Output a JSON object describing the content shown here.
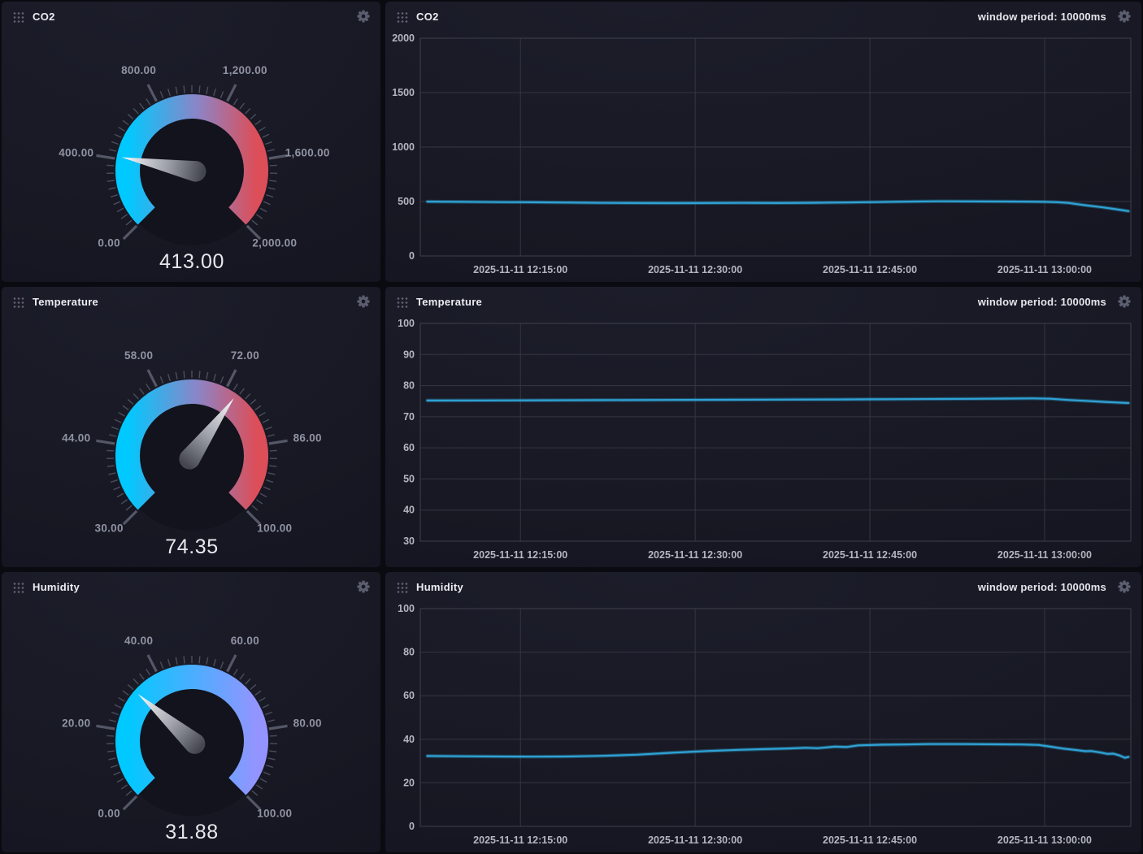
{
  "colors": {
    "page_bg": "#0a0b11",
    "panel_bg": "#181924",
    "grid": "#343642",
    "plot_border": "#3d3f4b",
    "line": "#2FA2D5",
    "tick_text": "#b3b6c1",
    "gauge_tick": "#545767",
    "gauge_label": "#8f93a3",
    "gauge_value": "#e7e8ec",
    "gauge_cyan": "#00C9FF",
    "gauge_red": "#DC4E58",
    "gauge_purple": "#9394FF",
    "gear": "#676b7c"
  },
  "panels": [
    {
      "title": "CO2"
    },
    {
      "title": "CO2",
      "note": "window period: 10000ms"
    },
    {
      "title": "Temperature"
    },
    {
      "title": "Temperature",
      "note": "window period: 10000ms"
    },
    {
      "title": "Humidity"
    },
    {
      "title": "Humidity",
      "note": "window period: 10000ms"
    }
  ],
  "gauges": [
    {
      "title": "CO2",
      "min": 0,
      "max": 2000,
      "value": 413,
      "value_label": "413.00",
      "tick_labels": [
        "0.00",
        "400.00",
        "800.00",
        "1,200.00",
        "1,600.00",
        "2,000.00"
      ],
      "gradient": [
        [
          0,
          "#00C9FF"
        ],
        [
          0.55,
          "#8d84c6"
        ],
        [
          1,
          "#DC4E58"
        ]
      ]
    },
    {
      "title": "Temperature",
      "min": 30,
      "max": 100,
      "value": 74.35,
      "value_label": "74.35",
      "tick_labels": [
        "30.00",
        "44.00",
        "58.00",
        "72.00",
        "86.00",
        "100.00"
      ],
      "gradient": [
        [
          0,
          "#00C9FF"
        ],
        [
          0.55,
          "#8d84c6"
        ],
        [
          1,
          "#DC4E58"
        ]
      ]
    },
    {
      "title": "Humidity",
      "min": 0,
      "max": 100,
      "value": 31.88,
      "value_label": "31.88",
      "tick_labels": [
        "0.00",
        "20.00",
        "40.00",
        "60.00",
        "80.00",
        "100.00"
      ],
      "gradient": [
        [
          0,
          "#00C9FF"
        ],
        [
          1,
          "#9394FF"
        ]
      ]
    }
  ],
  "chart_data": [
    {
      "type": "line",
      "title": "CO2",
      "note": "window period: 10000ms",
      "grid": true,
      "legend": "none",
      "ylim": [
        0,
        2000
      ],
      "y_ticks": [
        0,
        500,
        1000,
        1500,
        2000
      ],
      "x_domain_minutes": [
        726.4,
        787.4
      ],
      "x_ticks": [
        {
          "minute": 735,
          "label": "2025-11-11 12:15:00"
        },
        {
          "minute": 750,
          "label": "2025-11-11 12:30:00"
        },
        {
          "minute": 765,
          "label": "2025-11-11 12:45:00"
        },
        {
          "minute": 780,
          "label": "2025-11-11 13:00:00"
        }
      ],
      "series": [
        {
          "name": "CO2",
          "points": [
            [
              727,
              499
            ],
            [
              730,
              497
            ],
            [
              733,
              495
            ],
            [
              736,
              493
            ],
            [
              739,
              490
            ],
            [
              742,
              487
            ],
            [
              745,
              486
            ],
            [
              748,
              485
            ],
            [
              751,
              486
            ],
            [
              754,
              487
            ],
            [
              757,
              486
            ],
            [
              760,
              488
            ],
            [
              763,
              491
            ],
            [
              765,
              494
            ],
            [
              767,
              497
            ],
            [
              769,
              500
            ],
            [
              771,
              502
            ],
            [
              774,
              501
            ],
            [
              776,
              500
            ],
            [
              778,
              499
            ],
            [
              780,
              497
            ],
            [
              781,
              494
            ],
            [
              782,
              487
            ],
            [
              783.5,
              466
            ],
            [
              785,
              446
            ],
            [
              786.2,
              428
            ],
            [
              787.2,
              412
            ]
          ]
        }
      ]
    },
    {
      "type": "line",
      "title": "Temperature",
      "note": "window period: 10000ms",
      "grid": true,
      "legend": "none",
      "ylim": [
        30,
        100
      ],
      "y_ticks": [
        30,
        40,
        50,
        60,
        70,
        80,
        90,
        100
      ],
      "x_domain_minutes": [
        726.4,
        787.4
      ],
      "x_ticks": [
        {
          "minute": 735,
          "label": "2025-11-11 12:15:00"
        },
        {
          "minute": 750,
          "label": "2025-11-11 12:30:00"
        },
        {
          "minute": 765,
          "label": "2025-11-11 12:45:00"
        },
        {
          "minute": 780,
          "label": "2025-11-11 13:00:00"
        }
      ],
      "series": [
        {
          "name": "Temperature",
          "points": [
            [
              727,
              75.2
            ],
            [
              732,
              75.25
            ],
            [
              737,
              75.3
            ],
            [
              742,
              75.35
            ],
            [
              747,
              75.4
            ],
            [
              752,
              75.45
            ],
            [
              757,
              75.5
            ],
            [
              762,
              75.55
            ],
            [
              765,
              75.6
            ],
            [
              768,
              75.65
            ],
            [
              771,
              75.7
            ],
            [
              774,
              75.75
            ],
            [
              777,
              75.85
            ],
            [
              779,
              75.9
            ],
            [
              780.5,
              75.8
            ],
            [
              782,
              75.4
            ],
            [
              783.5,
              75.1
            ],
            [
              785,
              74.8
            ],
            [
              786,
              74.6
            ],
            [
              787.2,
              74.4
            ]
          ]
        }
      ]
    },
    {
      "type": "line",
      "title": "Humidity",
      "note": "window period: 10000ms",
      "grid": true,
      "legend": "none",
      "ylim": [
        0,
        100
      ],
      "y_ticks": [
        0,
        20,
        40,
        60,
        80,
        100
      ],
      "x_domain_minutes": [
        726.4,
        787.4
      ],
      "x_ticks": [
        {
          "minute": 735,
          "label": "2025-11-11 12:15:00"
        },
        {
          "minute": 750,
          "label": "2025-11-11 12:30:00"
        },
        {
          "minute": 765,
          "label": "2025-11-11 12:45:00"
        },
        {
          "minute": 780,
          "label": "2025-11-11 13:00:00"
        }
      ],
      "series": [
        {
          "name": "Humidity",
          "points": [
            [
              727,
              32.3
            ],
            [
              730,
              32.2
            ],
            [
              733,
              32.1
            ],
            [
              736,
              32.0
            ],
            [
              739,
              32.1
            ],
            [
              742,
              32.4
            ],
            [
              745,
              32.9
            ],
            [
              748,
              33.8
            ],
            [
              751,
              34.6
            ],
            [
              754,
              35.2
            ],
            [
              756,
              35.5
            ],
            [
              758,
              35.8
            ],
            [
              759.5,
              36.1
            ],
            [
              760.5,
              35.9
            ],
            [
              762,
              36.6
            ],
            [
              763,
              36.4
            ],
            [
              764,
              37.2
            ],
            [
              766,
              37.5
            ],
            [
              768,
              37.6
            ],
            [
              770,
              37.8
            ],
            [
              773,
              37.8
            ],
            [
              776,
              37.7
            ],
            [
              778,
              37.6
            ],
            [
              779.5,
              37.4
            ],
            [
              780.5,
              36.6
            ],
            [
              781.5,
              35.8
            ],
            [
              782.5,
              35.2
            ],
            [
              783.5,
              34.5
            ],
            [
              784,
              34.6
            ],
            [
              784.8,
              33.9
            ],
            [
              785.4,
              33.3
            ],
            [
              785.9,
              33.4
            ],
            [
              786.4,
              32.6
            ],
            [
              786.9,
              31.5
            ],
            [
              787.2,
              31.9
            ]
          ]
        }
      ]
    }
  ]
}
